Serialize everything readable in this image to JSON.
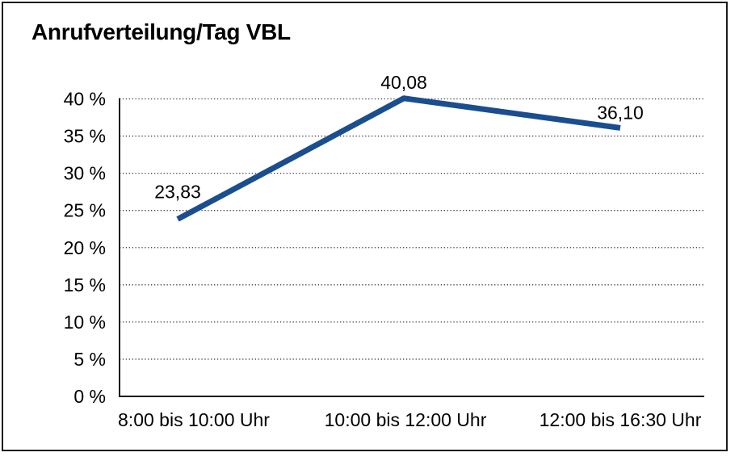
{
  "chart_data": {
    "type": "line",
    "title": "Anrufverteilung/Tag VBL",
    "categories": [
      "8:00 bis 10:00 Uhr",
      "10:00 bis 12:00 Uhr",
      "12:00 bis 16:30 Uhr"
    ],
    "values": [
      23.83,
      40.08,
      36.1
    ],
    "data_labels": [
      "23,83",
      "40,08",
      "36,10"
    ],
    "y_tick_labels": [
      "0 %",
      "5 %",
      "10 %",
      "15 %",
      "20 %",
      "25 %",
      "30 %",
      "35 %",
      "40 %"
    ],
    "y_tick_step": 5,
    "ylim": [
      0,
      40
    ],
    "xlabel": "",
    "ylabel": "",
    "legend": "none",
    "grid": "horizontal-dotted",
    "line_color": "#1a4e8e",
    "axis_color": "#1a1a1a",
    "grid_color": "#3d3d3d",
    "border_color": "#1c1c1c",
    "background_color": "#ffffff"
  }
}
